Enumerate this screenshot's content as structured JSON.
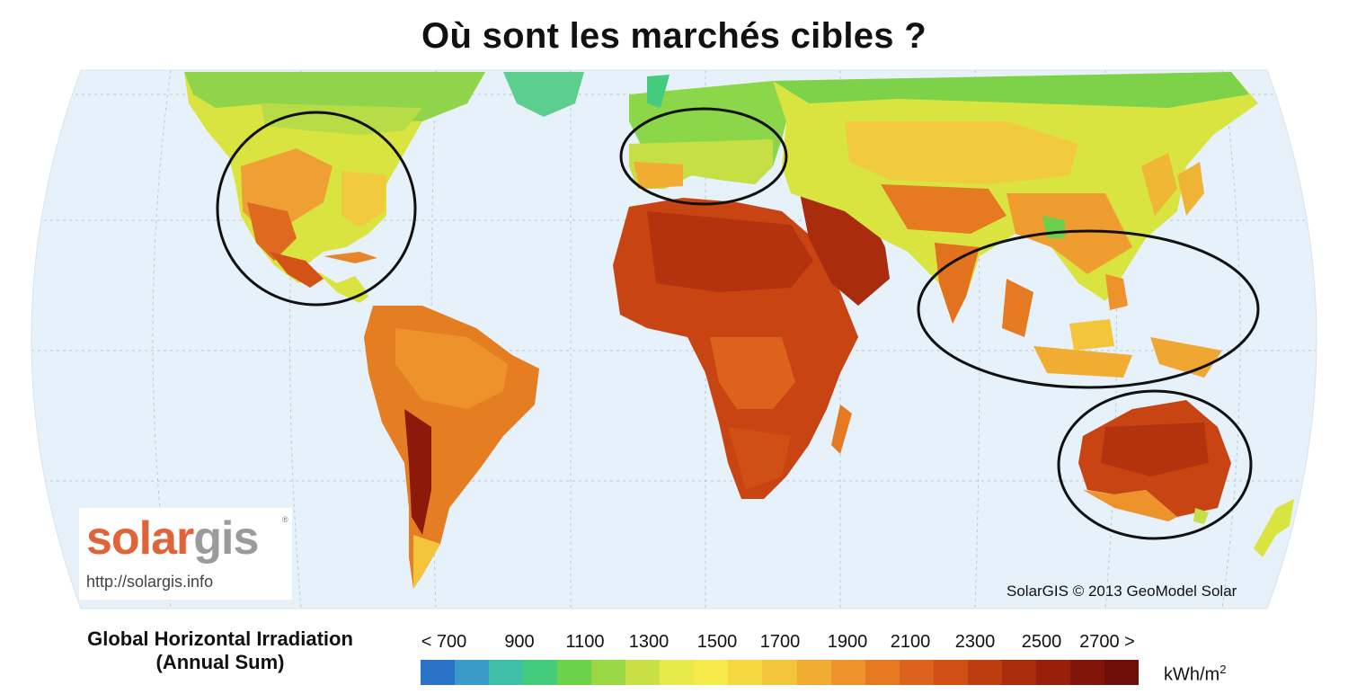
{
  "title": "Où sont les marchés cibles ?",
  "logo": {
    "solar": "solar",
    "gis": "gis",
    "reg": "®",
    "url": "http://solargis.info"
  },
  "copyright": "SolarGIS © 2013 GeoModel Solar",
  "legend": {
    "title_line1": "Global Horizontal Irradiation",
    "title_line2": "(Annual Sum)",
    "ticks": [
      "< 700",
      "900",
      "1100",
      "1300",
      "1500",
      "1700",
      "1900",
      "2100",
      "2300",
      "2500",
      "2700 >"
    ],
    "unit_base": "kWh/m",
    "unit_exp": "2",
    "colors": [
      "#2a73c6",
      "#3a9bc8",
      "#3fbfa8",
      "#44cc7c",
      "#6cd24a",
      "#9ad845",
      "#c8e046",
      "#e7ea4a",
      "#f6e94a",
      "#f5d840",
      "#f2c53a",
      "#f1ac32",
      "#ee932b",
      "#e67a22",
      "#dc631b",
      "#cf4f15",
      "#bd3d10",
      "#a92c0d",
      "#97200b",
      "#821509",
      "#6d0e08"
    ]
  },
  "map": {
    "ocean_color": "#e6f1fa",
    "target_markets": [
      "North America",
      "Europe",
      "South and Southeast Asia",
      "Australia"
    ]
  }
}
